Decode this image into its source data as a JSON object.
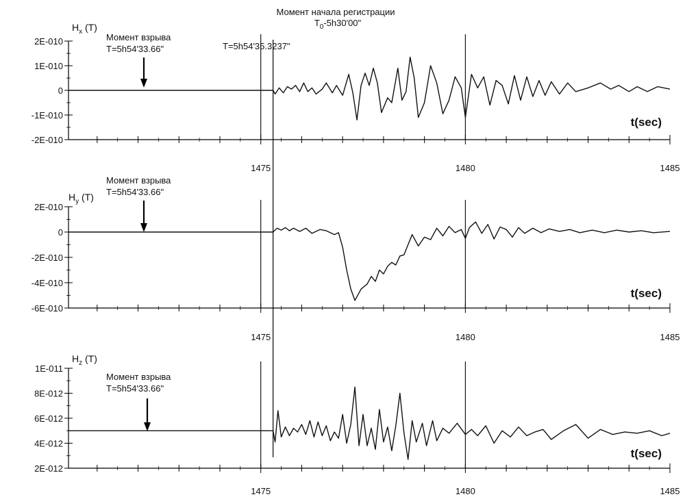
{
  "header": {
    "line1": "Момент начала регистрации",
    "line2_main": "T",
    "line2_sub": "0",
    "line2_rest": "-5h30'00\""
  },
  "onset_label": "T=5h54'35.3237\"",
  "explosion": {
    "label": "Момент взрыва",
    "time": "T=5h54'33.66\""
  },
  "x_axis": {
    "label": "t(sec)",
    "ticks": [
      "1475",
      "1480",
      "1485"
    ],
    "range": [
      1470.3,
      1485
    ]
  },
  "chart_data": [
    {
      "type": "line",
      "ylabel": "H",
      "ylabel_sub": "x",
      "ylabel_unit": " (T)",
      "ylim": [
        -2e-10,
        2e-10
      ],
      "yticks": [
        "2E-010",
        "1E-010",
        "0",
        "-1E-010",
        "-2E-010"
      ],
      "baseline": 0,
      "points": [
        [
          1470.3,
          0
        ],
        [
          1475.3,
          0
        ],
        [
          1475.35,
          -1.5e-11
        ],
        [
          1475.45,
          1e-11
        ],
        [
          1475.55,
          -1e-11
        ],
        [
          1475.65,
          1.5e-11
        ],
        [
          1475.75,
          5e-12
        ],
        [
          1475.85,
          2e-11
        ],
        [
          1475.95,
          -5e-12
        ],
        [
          1476.05,
          3e-11
        ],
        [
          1476.15,
          -5e-12
        ],
        [
          1476.25,
          1e-11
        ],
        [
          1476.35,
          -1.5e-11
        ],
        [
          1476.5,
          5e-12
        ],
        [
          1476.6,
          3e-11
        ],
        [
          1476.75,
          -1e-11
        ],
        [
          1476.85,
          2e-11
        ],
        [
          1477.0,
          -2e-11
        ],
        [
          1477.15,
          6.5e-11
        ],
        [
          1477.25,
          -1e-11
        ],
        [
          1477.35,
          -1.2e-10
        ],
        [
          1477.45,
          2e-11
        ],
        [
          1477.55,
          7e-11
        ],
        [
          1477.65,
          2e-11
        ],
        [
          1477.75,
          9e-11
        ],
        [
          1477.85,
          3e-11
        ],
        [
          1477.95,
          -9e-11
        ],
        [
          1478.1,
          -3e-11
        ],
        [
          1478.2,
          -5e-11
        ],
        [
          1478.35,
          9e-11
        ],
        [
          1478.45,
          -4e-11
        ],
        [
          1478.55,
          -5e-12
        ],
        [
          1478.65,
          1.35e-10
        ],
        [
          1478.75,
          5e-11
        ],
        [
          1478.85,
          -1.1e-10
        ],
        [
          1479.0,
          -5e-11
        ],
        [
          1479.15,
          1e-10
        ],
        [
          1479.3,
          3e-11
        ],
        [
          1479.45,
          -9.5e-11
        ],
        [
          1479.6,
          -4e-11
        ],
        [
          1479.75,
          5.5e-11
        ],
        [
          1479.9,
          1e-11
        ],
        [
          1480.0,
          -1.1e-10
        ],
        [
          1480.15,
          6.5e-11
        ],
        [
          1480.3,
          1e-11
        ],
        [
          1480.45,
          5.5e-11
        ],
        [
          1480.6,
          -6e-11
        ],
        [
          1480.75,
          4e-11
        ],
        [
          1480.9,
          2e-11
        ],
        [
          1481.05,
          -5.5e-11
        ],
        [
          1481.2,
          6e-11
        ],
        [
          1481.35,
          -4e-11
        ],
        [
          1481.5,
          5.5e-11
        ],
        [
          1481.65,
          -2.5e-11
        ],
        [
          1481.8,
          4e-11
        ],
        [
          1481.95,
          -2e-11
        ],
        [
          1482.1,
          3.5e-11
        ],
        [
          1482.3,
          -1.5e-11
        ],
        [
          1482.5,
          3e-11
        ],
        [
          1482.7,
          -5e-12
        ],
        [
          1483.0,
          1e-11
        ],
        [
          1483.3,
          3e-11
        ],
        [
          1483.55,
          5e-12
        ],
        [
          1483.75,
          2e-11
        ],
        [
          1484.0,
          -5e-12
        ],
        [
          1484.2,
          1.5e-11
        ],
        [
          1484.45,
          -5e-12
        ],
        [
          1484.7,
          1.5e-11
        ],
        [
          1485.0,
          5e-12
        ]
      ]
    },
    {
      "type": "line",
      "ylabel": "H",
      "ylabel_sub": "y",
      "ylabel_unit": " (T)",
      "ylim": [
        -6e-10,
        2e-10
      ],
      "yticks": [
        "2E-010",
        "0",
        "-2E-010",
        "-4E-010",
        "-6E-010"
      ],
      "baseline": 0,
      "points": [
        [
          1470.3,
          0
        ],
        [
          1475.3,
          0
        ],
        [
          1475.4,
          3e-11
        ],
        [
          1475.5,
          1.5e-11
        ],
        [
          1475.6,
          3.5e-11
        ],
        [
          1475.7,
          1e-11
        ],
        [
          1475.8,
          3e-11
        ],
        [
          1475.95,
          5e-12
        ],
        [
          1476.1,
          3e-11
        ],
        [
          1476.25,
          -1e-11
        ],
        [
          1476.45,
          2e-11
        ],
        [
          1476.6,
          1e-11
        ],
        [
          1476.8,
          -2e-11
        ],
        [
          1476.9,
          -5e-12
        ],
        [
          1477.0,
          -1.2e-10
        ],
        [
          1477.1,
          -3e-10
        ],
        [
          1477.2,
          -4.5e-10
        ],
        [
          1477.3,
          -5.4e-10
        ],
        [
          1477.45,
          -4.5e-10
        ],
        [
          1477.6,
          -4.1e-10
        ],
        [
          1477.7,
          -3.5e-10
        ],
        [
          1477.8,
          -3.9e-10
        ],
        [
          1477.9,
          -3e-10
        ],
        [
          1478.0,
          -3.3e-10
        ],
        [
          1478.1,
          -2.7e-10
        ],
        [
          1478.2,
          -2.4e-10
        ],
        [
          1478.3,
          -2.6e-10
        ],
        [
          1478.4,
          -1.9e-10
        ],
        [
          1478.5,
          -1.8e-10
        ],
        [
          1478.6,
          -1e-10
        ],
        [
          1478.7,
          -2e-11
        ],
        [
          1478.85,
          -1.1e-10
        ],
        [
          1479.0,
          -4e-11
        ],
        [
          1479.15,
          -6e-11
        ],
        [
          1479.3,
          3e-11
        ],
        [
          1479.45,
          -3e-11
        ],
        [
          1479.6,
          4.5e-11
        ],
        [
          1479.75,
          -5e-12
        ],
        [
          1479.9,
          2e-11
        ],
        [
          1480.0,
          -5e-11
        ],
        [
          1480.1,
          3.5e-11
        ],
        [
          1480.25,
          8e-11
        ],
        [
          1480.4,
          -1e-11
        ],
        [
          1480.55,
          6e-11
        ],
        [
          1480.7,
          -5.5e-11
        ],
        [
          1480.85,
          4e-11
        ],
        [
          1481.0,
          2e-11
        ],
        [
          1481.15,
          -4e-11
        ],
        [
          1481.3,
          3.5e-11
        ],
        [
          1481.45,
          -1e-11
        ],
        [
          1481.65,
          3e-11
        ],
        [
          1481.85,
          -5e-12
        ],
        [
          1482.05,
          2.5e-11
        ],
        [
          1482.3,
          5e-12
        ],
        [
          1482.55,
          2e-11
        ],
        [
          1482.8,
          -5e-12
        ],
        [
          1483.1,
          1.5e-11
        ],
        [
          1483.4,
          -5e-12
        ],
        [
          1483.7,
          1.5e-11
        ],
        [
          1484.0,
          0
        ],
        [
          1484.3,
          1e-11
        ],
        [
          1484.6,
          -5e-12
        ],
        [
          1485.0,
          5e-12
        ]
      ]
    },
    {
      "type": "line",
      "ylabel": "H",
      "ylabel_sub": "z",
      "ylabel_unit": " (T)",
      "ylim": [
        2e-12,
        1e-11
      ],
      "yticks": [
        "1E-011",
        "8E-012",
        "6E-012",
        "4E-012",
        "2E-012"
      ],
      "baseline": 5e-12,
      "points": [
        [
          1470.3,
          5e-12
        ],
        [
          1475.3,
          5e-12
        ],
        [
          1475.35,
          4.1e-12
        ],
        [
          1475.42,
          6.6e-12
        ],
        [
          1475.5,
          4.5e-12
        ],
        [
          1475.6,
          5.3e-12
        ],
        [
          1475.7,
          4.6e-12
        ],
        [
          1475.8,
          5.2e-12
        ],
        [
          1475.9,
          4.9e-12
        ],
        [
          1476.0,
          5.5e-12
        ],
        [
          1476.1,
          4.7e-12
        ],
        [
          1476.2,
          5.8e-12
        ],
        [
          1476.3,
          4.5e-12
        ],
        [
          1476.4,
          5.7e-12
        ],
        [
          1476.5,
          4.6e-12
        ],
        [
          1476.6,
          5.4e-12
        ],
        [
          1476.7,
          4.2e-12
        ],
        [
          1476.8,
          4.9e-12
        ],
        [
          1476.9,
          4.4e-12
        ],
        [
          1477.0,
          6.3e-12
        ],
        [
          1477.1,
          4e-12
        ],
        [
          1477.2,
          5.5e-12
        ],
        [
          1477.3,
          8.5e-12
        ],
        [
          1477.4,
          3.8e-12
        ],
        [
          1477.5,
          6.3e-12
        ],
        [
          1477.6,
          3.8e-12
        ],
        [
          1477.7,
          5.2e-12
        ],
        [
          1477.8,
          3.5e-12
        ],
        [
          1477.9,
          6.7e-12
        ],
        [
          1478.0,
          4.1e-12
        ],
        [
          1478.1,
          5.3e-12
        ],
        [
          1478.2,
          3.4e-12
        ],
        [
          1478.3,
          5.4e-12
        ],
        [
          1478.4,
          8e-12
        ],
        [
          1478.5,
          4.8e-12
        ],
        [
          1478.6,
          2.7e-12
        ],
        [
          1478.7,
          5.8e-12
        ],
        [
          1478.8,
          4.1e-12
        ],
        [
          1478.95,
          5.6e-12
        ],
        [
          1479.05,
          3.8e-12
        ],
        [
          1479.2,
          5.8e-12
        ],
        [
          1479.3,
          4.2e-12
        ],
        [
          1479.45,
          5.2e-12
        ],
        [
          1479.6,
          4.8e-12
        ],
        [
          1479.8,
          5.6e-12
        ],
        [
          1480.0,
          4.7e-12
        ],
        [
          1480.15,
          5.1e-12
        ],
        [
          1480.3,
          4.6e-12
        ],
        [
          1480.5,
          5.4e-12
        ],
        [
          1480.7,
          4e-12
        ],
        [
          1480.9,
          5e-12
        ],
        [
          1481.1,
          4.5e-12
        ],
        [
          1481.3,
          5.3e-12
        ],
        [
          1481.5,
          4.6e-12
        ],
        [
          1481.7,
          4.9e-12
        ],
        [
          1481.9,
          5.1e-12
        ],
        [
          1482.1,
          4.3e-12
        ],
        [
          1482.4,
          5e-12
        ],
        [
          1482.7,
          5.5e-12
        ],
        [
          1483.0,
          4.4e-12
        ],
        [
          1483.3,
          5.1e-12
        ],
        [
          1483.6,
          4.7e-12
        ],
        [
          1483.9,
          4.9e-12
        ],
        [
          1484.2,
          4.8e-12
        ],
        [
          1484.5,
          5e-12
        ],
        [
          1484.8,
          4.6e-12
        ],
        [
          1485.0,
          4.8e-12
        ]
      ]
    }
  ]
}
